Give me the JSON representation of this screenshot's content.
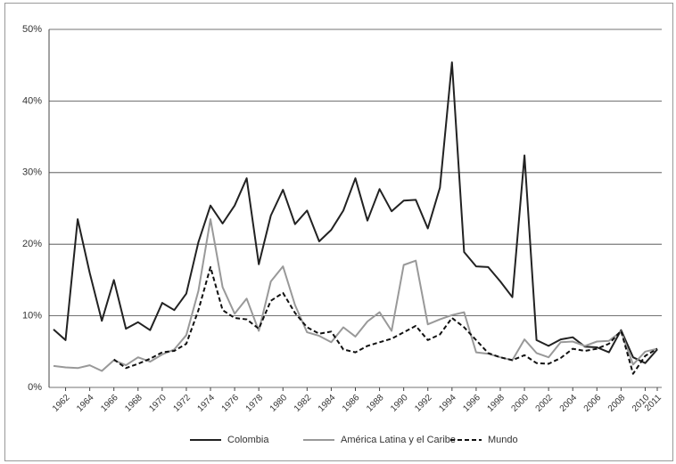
{
  "chart_data": {
    "type": "line",
    "x": [
      1961,
      1962,
      1963,
      1964,
      1965,
      1966,
      1967,
      1968,
      1969,
      1970,
      1971,
      1972,
      1973,
      1974,
      1975,
      1976,
      1977,
      1978,
      1979,
      1980,
      1981,
      1982,
      1983,
      1984,
      1985,
      1986,
      1987,
      1988,
      1989,
      1990,
      1991,
      1992,
      1993,
      1994,
      1995,
      1996,
      1997,
      1998,
      1999,
      2000,
      2001,
      2002,
      2003,
      2004,
      2005,
      2006,
      2007,
      2008,
      2009,
      2010,
      2011
    ],
    "series": [
      {
        "name": "Colombia",
        "color": "#222222",
        "dash": false,
        "values": [
          8.1,
          6.6,
          23.5,
          16.0,
          9.3,
          15.0,
          8.2,
          9.1,
          8.0,
          11.8,
          10.8,
          13.1,
          20.3,
          25.4,
          22.9,
          25.4,
          29.2,
          17.2,
          24.0,
          27.6,
          22.8,
          24.7,
          20.4,
          22.0,
          24.7,
          29.2,
          23.3,
          27.7,
          24.6,
          26.1,
          26.2,
          22.2,
          27.9,
          45.4,
          18.9,
          16.9,
          16.8,
          14.8,
          12.6,
          32.4,
          6.6,
          5.8,
          6.7,
          7.0,
          5.7,
          5.6,
          4.9,
          8.0,
          4.2,
          3.4,
          5.3
        ]
      },
      {
        "name": "América Latina y el Caribe",
        "color": "#999999",
        "dash": false,
        "values": [
          3.0,
          2.8,
          2.7,
          3.1,
          2.3,
          3.8,
          3.1,
          4.2,
          3.6,
          4.6,
          5.3,
          7.3,
          13.5,
          23.5,
          14.0,
          10.3,
          12.4,
          7.9,
          14.8,
          16.9,
          11.5,
          7.7,
          7.2,
          6.3,
          8.4,
          7.1,
          9.2,
          10.5,
          7.9,
          17.1,
          17.7,
          8.8,
          9.5,
          10.1,
          10.5,
          4.9,
          4.7,
          4.2,
          3.8,
          6.7,
          4.8,
          4.2,
          6.3,
          6.4,
          5.8,
          6.4,
          6.5,
          7.8,
          3.2,
          5.0,
          5.4
        ]
      },
      {
        "name": "Mundo",
        "color": "#111111",
        "dash": true,
        "values": [
          null,
          null,
          null,
          null,
          null,
          3.9,
          2.7,
          3.3,
          4.0,
          4.9,
          5.1,
          6.1,
          10.8,
          16.8,
          10.8,
          9.7,
          9.5,
          8.2,
          12.1,
          13.2,
          10.4,
          8.4,
          7.5,
          7.8,
          5.3,
          4.9,
          5.8,
          6.3,
          6.8,
          7.7,
          8.6,
          6.6,
          7.4,
          9.7,
          8.4,
          6.6,
          4.8,
          4.2,
          3.8,
          4.5,
          3.4,
          3.3,
          4.1,
          5.4,
          5.1,
          5.4,
          6.1,
          7.9,
          1.9,
          4.4,
          5.4
        ]
      }
    ],
    "xlim": [
      1961,
      2011
    ],
    "xticks": [
      1962,
      1964,
      1966,
      1968,
      1970,
      1972,
      1974,
      1976,
      1978,
      1980,
      1982,
      1984,
      1986,
      1988,
      1990,
      1992,
      1994,
      1996,
      1998,
      2000,
      2002,
      2004,
      2006,
      2008,
      2010,
      2011
    ],
    "ylim": [
      0,
      50
    ],
    "yticks": [
      {
        "value": 0,
        "label": "0%"
      },
      {
        "value": 10,
        "label": "10%"
      },
      {
        "value": 20,
        "label": "20%"
      },
      {
        "value": 30,
        "label": "30%"
      },
      {
        "value": 40,
        "label": "40%"
      },
      {
        "value": 50,
        "label": "50%"
      }
    ],
    "grid": true,
    "legend": "bottom"
  }
}
